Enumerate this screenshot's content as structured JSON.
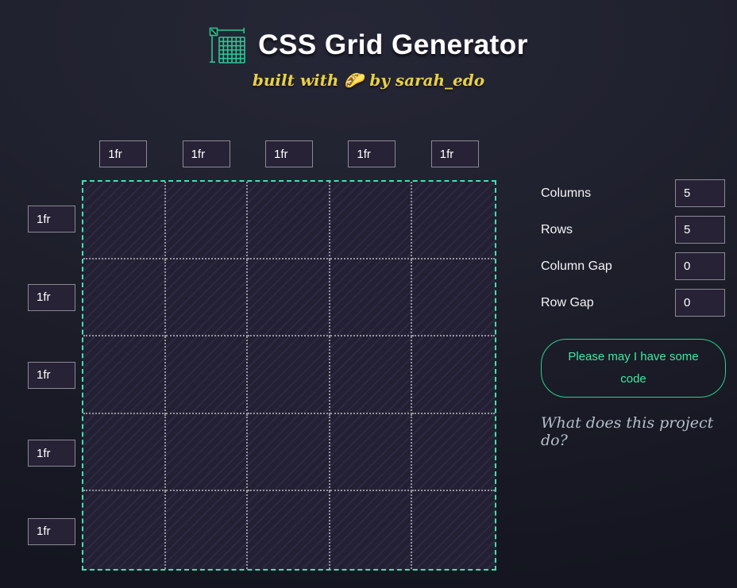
{
  "header": {
    "title": "CSS Grid Generator",
    "subtitle": "built with 🌮 by sarah_edo"
  },
  "tracks": {
    "columns": [
      "1fr",
      "1fr",
      "1fr",
      "1fr",
      "1fr"
    ],
    "rows": [
      "1fr",
      "1fr",
      "1fr",
      "1fr",
      "1fr"
    ]
  },
  "grid": {
    "columns": 5,
    "rows": 5,
    "column_gap": 0,
    "row_gap": 0
  },
  "settings": [
    {
      "label": "Columns",
      "value": "5"
    },
    {
      "label": "Rows",
      "value": "5"
    },
    {
      "label": "Column Gap",
      "value": "0"
    },
    {
      "label": "Row Gap",
      "value": "0"
    }
  ],
  "actions": {
    "get_code_label": "Please may I have some code"
  },
  "footer_link": {
    "label": "What does this project do?"
  },
  "colors": {
    "accent_teal": "#3fe3ae",
    "button_green": "#3ce9a2",
    "button_border": "#2bd08f",
    "subtitle_yellow": "#e8cf4b",
    "input_background": "#272236",
    "input_border": "#8b8994",
    "grid_dotted_line": "#96949e",
    "hatch_base": "#232034",
    "hatch_stripe": "#2c2941",
    "link_gray": "#b6bfcd"
  }
}
